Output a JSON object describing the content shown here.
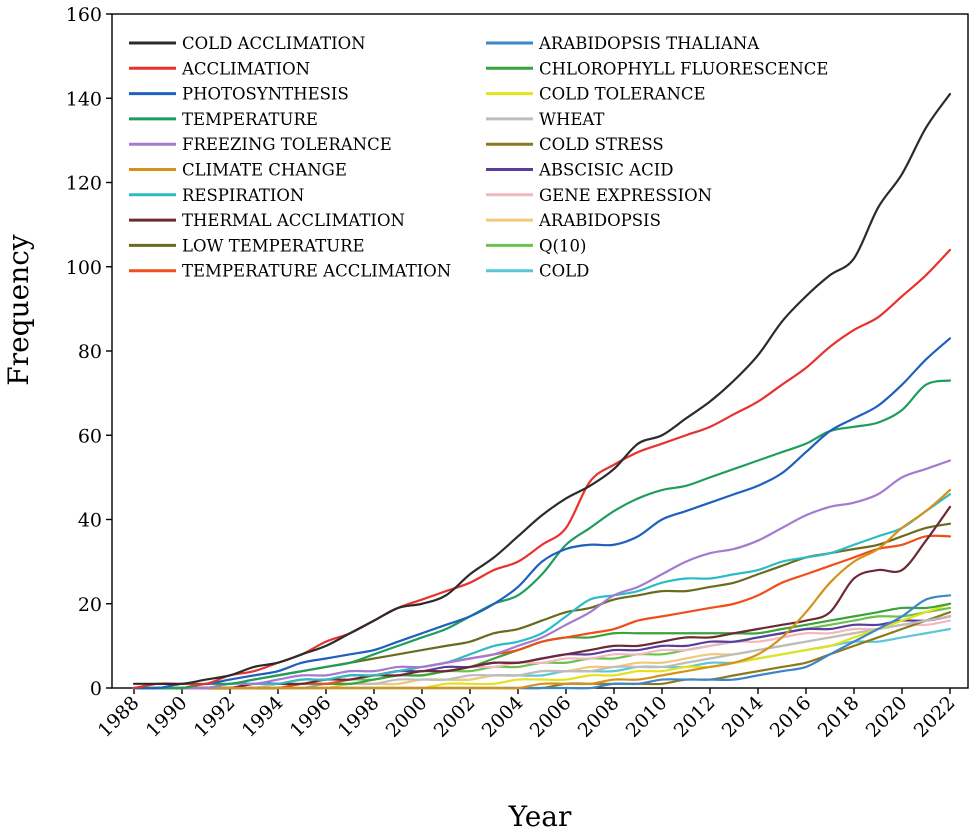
{
  "chart_data": {
    "type": "line",
    "title": "",
    "xlabel": "Year",
    "ylabel": "Frequency",
    "xlim": [
      1988,
      2022
    ],
    "ylim": [
      0,
      160
    ],
    "x_ticks": [
      1988,
      1990,
      1992,
      1994,
      1996,
      1998,
      2000,
      2002,
      2004,
      2006,
      2008,
      2010,
      2012,
      2014,
      2016,
      2018,
      2020,
      2022
    ],
    "y_ticks": [
      0,
      20,
      40,
      60,
      80,
      100,
      120,
      140,
      160
    ],
    "grid": false,
    "legend_position": "top-left",
    "years": [
      1988,
      1989,
      1990,
      1991,
      1992,
      1993,
      1994,
      1995,
      1996,
      1997,
      1998,
      1999,
      2000,
      2001,
      2002,
      2003,
      2004,
      2005,
      2006,
      2007,
      2008,
      2009,
      2010,
      2011,
      2012,
      2013,
      2014,
      2015,
      2016,
      2017,
      2018,
      2019,
      2020,
      2021,
      2022
    ],
    "series": [
      {
        "name": "COLD ACCLIMATION",
        "color": "#2b2b2b",
        "values": [
          1,
          1,
          1,
          2,
          3,
          5,
          6,
          8,
          10,
          13,
          16,
          19,
          20,
          22,
          27,
          31,
          36,
          41,
          45,
          48,
          52,
          58,
          60,
          64,
          68,
          73,
          79,
          87,
          93,
          98,
          102,
          114,
          122,
          133,
          141
        ]
      },
      {
        "name": "ACCLIMATION",
        "color": "#e8322e",
        "values": [
          0,
          1,
          1,
          1,
          3,
          4,
          6,
          8,
          11,
          13,
          16,
          19,
          21,
          23,
          25,
          28,
          30,
          34,
          38,
          49,
          53,
          56,
          58,
          60,
          62,
          65,
          68,
          72,
          76,
          81,
          85,
          88,
          93,
          98,
          104
        ]
      },
      {
        "name": "PHOTOSYNTHESIS",
        "color": "#1f5fbf",
        "values": [
          0,
          0,
          1,
          1,
          2,
          3,
          4,
          6,
          7,
          8,
          9,
          11,
          13,
          15,
          17,
          20,
          24,
          30,
          33,
          34,
          34,
          36,
          40,
          42,
          44,
          46,
          48,
          51,
          56,
          61,
          64,
          67,
          72,
          78,
          83
        ]
      },
      {
        "name": "TEMPERATURE",
        "color": "#1e9e5a",
        "values": [
          0,
          0,
          0,
          1,
          1,
          2,
          3,
          4,
          5,
          6,
          8,
          10,
          12,
          14,
          17,
          20,
          22,
          27,
          34,
          38,
          42,
          45,
          47,
          48,
          50,
          52,
          54,
          56,
          58,
          61,
          62,
          63,
          66,
          72,
          73
        ]
      },
      {
        "name": "FREEZING TOLERANCE",
        "color": "#a57ad0",
        "values": [
          0,
          0,
          0,
          0,
          1,
          1,
          2,
          3,
          3,
          4,
          4,
          5,
          5,
          6,
          7,
          8,
          10,
          12,
          15,
          18,
          22,
          24,
          27,
          30,
          32,
          33,
          35,
          38,
          41,
          43,
          44,
          46,
          50,
          52,
          54
        ]
      },
      {
        "name": "CLIMATE CHANGE",
        "color": "#d4921a",
        "values": [
          0,
          0,
          0,
          0,
          0,
          0,
          0,
          0,
          0,
          0,
          0,
          0,
          0,
          0,
          0,
          0,
          0,
          1,
          1,
          1,
          2,
          2,
          3,
          4,
          5,
          6,
          8,
          12,
          18,
          25,
          30,
          33,
          38,
          42,
          47
        ]
      },
      {
        "name": "RESPIRATION",
        "color": "#2bbcc6",
        "values": [
          0,
          0,
          0,
          0,
          1,
          1,
          1,
          2,
          2,
          3,
          3,
          4,
          5,
          6,
          8,
          10,
          11,
          13,
          17,
          21,
          22,
          23,
          25,
          26,
          26,
          27,
          28,
          30,
          31,
          32,
          34,
          36,
          38,
          42,
          46
        ]
      },
      {
        "name": "THERMAL ACCLIMATION",
        "color": "#6b2a35",
        "values": [
          0,
          0,
          0,
          0,
          0,
          1,
          1,
          1,
          2,
          2,
          3,
          3,
          4,
          4,
          5,
          6,
          6,
          7,
          8,
          9,
          10,
          10,
          11,
          12,
          12,
          13,
          14,
          15,
          16,
          18,
          26,
          28,
          28,
          35,
          43
        ]
      },
      {
        "name": "LOW TEMPERATURE",
        "color": "#6b6b1f",
        "values": [
          0,
          0,
          0,
          1,
          1,
          2,
          3,
          4,
          5,
          6,
          7,
          8,
          9,
          10,
          11,
          13,
          14,
          16,
          18,
          19,
          21,
          22,
          23,
          23,
          24,
          25,
          27,
          29,
          31,
          32,
          33,
          34,
          36,
          38,
          39
        ]
      },
      {
        "name": "TEMPERATURE ACCLIMATION",
        "color": "#f04e1a",
        "values": [
          0,
          0,
          0,
          0,
          0,
          0,
          0,
          1,
          1,
          2,
          3,
          4,
          5,
          6,
          7,
          8,
          9,
          11,
          12,
          13,
          14,
          16,
          17,
          18,
          19,
          20,
          22,
          25,
          27,
          29,
          31,
          33,
          34,
          36,
          36
        ]
      },
      {
        "name": "ARABIDOPSIS THALIANA",
        "color": "#3a86c8",
        "values": [
          0,
          0,
          0,
          0,
          0,
          0,
          0,
          0,
          0,
          0,
          0,
          0,
          0,
          0,
          0,
          0,
          0,
          0,
          0,
          0,
          1,
          1,
          2,
          2,
          2,
          2,
          3,
          4,
          5,
          8,
          11,
          14,
          17,
          21,
          22
        ]
      },
      {
        "name": "CHLOROPHYLL FLUORESCENCE",
        "color": "#3aa33a",
        "values": [
          0,
          0,
          0,
          0,
          0,
          0,
          0,
          1,
          1,
          1,
          2,
          3,
          3,
          4,
          5,
          7,
          9,
          11,
          12,
          12,
          13,
          13,
          13,
          13,
          13,
          13,
          13,
          14,
          15,
          16,
          17,
          18,
          19,
          19,
          20
        ]
      },
      {
        "name": "COLD TOLERANCE",
        "color": "#e3e319",
        "values": [
          0,
          0,
          0,
          0,
          0,
          0,
          0,
          0,
          0,
          0,
          0,
          0,
          0,
          1,
          1,
          1,
          2,
          2,
          2,
          3,
          3,
          4,
          4,
          5,
          5,
          6,
          7,
          8,
          9,
          10,
          12,
          14,
          16,
          18,
          20
        ]
      },
      {
        "name": "WHEAT",
        "color": "#bdbdbd",
        "values": [
          0,
          0,
          0,
          0,
          0,
          0,
          0,
          1,
          1,
          1,
          1,
          2,
          2,
          2,
          3,
          3,
          3,
          4,
          4,
          4,
          5,
          5,
          5,
          6,
          7,
          8,
          9,
          10,
          11,
          12,
          13,
          14,
          15,
          16,
          17
        ]
      },
      {
        "name": "COLD STRESS",
        "color": "#8c7a1a",
        "values": [
          0,
          0,
          0,
          0,
          0,
          0,
          0,
          0,
          0,
          0,
          0,
          0,
          0,
          0,
          0,
          0,
          0,
          0,
          1,
          1,
          1,
          1,
          1,
          2,
          2,
          3,
          4,
          5,
          6,
          8,
          10,
          12,
          14,
          16,
          18
        ]
      },
      {
        "name": "ABSCISIC ACID",
        "color": "#5a3c9e",
        "values": [
          0,
          0,
          0,
          0,
          0,
          1,
          1,
          2,
          2,
          3,
          3,
          4,
          4,
          5,
          5,
          6,
          6,
          7,
          8,
          8,
          9,
          9,
          10,
          10,
          11,
          11,
          12,
          13,
          14,
          14,
          15,
          15,
          16,
          16,
          17
        ]
      },
      {
        "name": "GENE EXPRESSION",
        "color": "#f2b8c0",
        "values": [
          0,
          0,
          0,
          0,
          0,
          0,
          1,
          1,
          2,
          2,
          3,
          3,
          4,
          4,
          5,
          5,
          6,
          6,
          7,
          7,
          8,
          8,
          9,
          9,
          10,
          11,
          11,
          12,
          13,
          13,
          14,
          14,
          15,
          15,
          16
        ]
      },
      {
        "name": "ARABIDOPSIS",
        "color": "#f2c879",
        "values": [
          0,
          0,
          0,
          0,
          0,
          0,
          0,
          0,
          0,
          1,
          1,
          1,
          2,
          2,
          2,
          3,
          3,
          4,
          4,
          5,
          5,
          6,
          6,
          7,
          8,
          8,
          9,
          10,
          11,
          12,
          13,
          14,
          15,
          16,
          17
        ]
      },
      {
        "name": "Q(10)",
        "color": "#6cc24a",
        "values": [
          0,
          0,
          0,
          0,
          0,
          0,
          1,
          1,
          1,
          2,
          2,
          3,
          3,
          4,
          4,
          5,
          5,
          6,
          6,
          7,
          7,
          8,
          8,
          9,
          10,
          11,
          12,
          13,
          14,
          15,
          16,
          17,
          17,
          18,
          19
        ]
      },
      {
        "name": "COLD",
        "color": "#5cc6d6",
        "values": [
          0,
          0,
          0,
          0,
          0,
          0,
          0,
          0,
          1,
          1,
          1,
          1,
          2,
          2,
          2,
          3,
          3,
          3,
          4,
          4,
          4,
          5,
          5,
          5,
          6,
          6,
          7,
          8,
          9,
          10,
          11,
          11,
          12,
          13,
          14
        ]
      }
    ]
  }
}
